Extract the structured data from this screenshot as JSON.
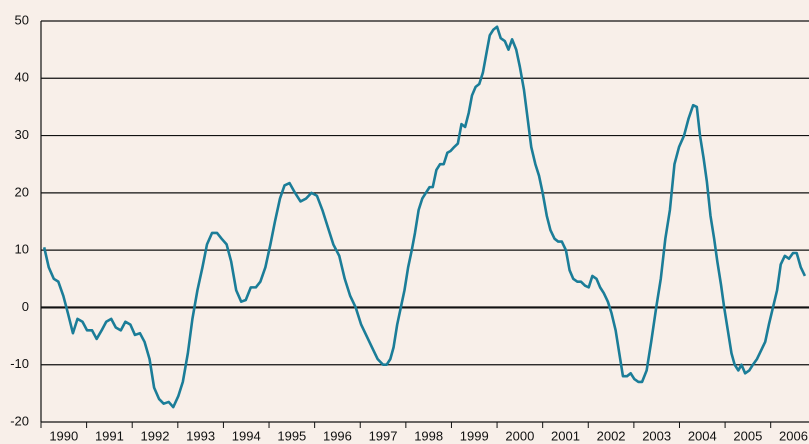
{
  "chart_data": {
    "type": "line",
    "color": "#1b7d98",
    "grid": true,
    "xlim": [
      1990,
      2006.84
    ],
    "xticks": [
      1990,
      1991,
      1992,
      1993,
      1994,
      1995,
      1996,
      1997,
      1998,
      1999,
      2000,
      2001,
      2002,
      2003,
      2004,
      2005,
      2006
    ],
    "ylim": [
      -20,
      50
    ],
    "yticks": [
      -20,
      -10,
      0,
      10,
      20,
      30,
      40,
      50
    ],
    "x": [
      1990.07,
      1990.17,
      1990.28,
      1990.38,
      1990.49,
      1990.59,
      1990.7,
      1990.8,
      1990.91,
      1991.01,
      1991.12,
      1991.22,
      1991.33,
      1991.43,
      1991.54,
      1991.64,
      1991.75,
      1991.85,
      1991.96,
      1992.06,
      1992.17,
      1992.27,
      1992.38,
      1992.48,
      1992.59,
      1992.69,
      1992.8,
      1992.9,
      1993.01,
      1993.11,
      1993.22,
      1993.32,
      1993.43,
      1993.54,
      1993.64,
      1993.75,
      1993.86,
      1993.96,
      1994.07,
      1994.17,
      1994.28,
      1994.39,
      1994.49,
      1994.6,
      1994.71,
      1994.81,
      1994.92,
      1995.03,
      1995.13,
      1995.24,
      1995.34,
      1995.45,
      1995.57,
      1995.69,
      1995.81,
      1995.93,
      1996.05,
      1996.17,
      1996.29,
      1996.41,
      1996.54,
      1996.66,
      1996.78,
      1996.9,
      1997.02,
      1997.14,
      1997.26,
      1997.38,
      1997.5,
      1997.58,
      1997.66,
      1997.73,
      1997.81,
      1997.89,
      1997.97,
      1998.05,
      1998.13,
      1998.2,
      1998.28,
      1998.36,
      1998.44,
      1998.52,
      1998.59,
      1998.67,
      1998.75,
      1998.83,
      1998.91,
      1998.98,
      1999.06,
      1999.14,
      1999.22,
      1999.3,
      1999.38,
      1999.45,
      1999.53,
      1999.61,
      1999.69,
      1999.77,
      1999.84,
      1999.92,
      2000.0,
      2000.08,
      2000.17,
      2000.25,
      2000.33,
      2000.42,
      2000.5,
      2000.59,
      2000.67,
      2000.75,
      2000.84,
      2000.92,
      2001.0,
      2001.09,
      2001.17,
      2001.26,
      2001.34,
      2001.42,
      2001.51,
      2001.59,
      2001.67,
      2001.76,
      2001.84,
      2001.93,
      2002.01,
      2002.09,
      2002.18,
      2002.26,
      2002.34,
      2002.43,
      2002.51,
      2002.6,
      2002.68,
      2002.76,
      2002.85,
      2002.93,
      2003.01,
      2003.1,
      2003.18,
      2003.28,
      2003.38,
      2003.49,
      2003.59,
      2003.69,
      2003.79,
      2003.89,
      2003.99,
      2004.1,
      2004.2,
      2004.3,
      2004.38,
      2004.45,
      2004.53,
      2004.6,
      2004.68,
      2004.76,
      2004.83,
      2004.91,
      2004.98,
      2005.06,
      2005.14,
      2005.21,
      2005.29,
      2005.36,
      2005.44,
      2005.53,
      2005.61,
      2005.7,
      2005.79,
      2005.88,
      2005.96,
      2006.05,
      2006.14,
      2006.22,
      2006.31,
      2006.4,
      2006.49,
      2006.57,
      2006.66,
      2006.75
    ],
    "values": [
      10.5,
      7,
      5,
      4.5,
      2,
      -1,
      -4.5,
      -2,
      -2.5,
      -4,
      -4,
      -5.5,
      -4,
      -2.5,
      -2,
      -3.5,
      -4,
      -2.5,
      -3,
      -4.8,
      -4.5,
      -6,
      -9,
      -14,
      -16,
      -16.8,
      -16.5,
      -17.4,
      -15.5,
      -13,
      -8,
      -2,
      3,
      7,
      11,
      13,
      13,
      12,
      11,
      8,
      3,
      1,
      1.3,
      3.5,
      3.5,
      4.5,
      7,
      11,
      15,
      19,
      21.3,
      21.7,
      20,
      18.5,
      19,
      20,
      19.5,
      17,
      14,
      11,
      9,
      5,
      2,
      0,
      -3,
      -5,
      -7,
      -9,
      -10,
      -10,
      -9,
      -7,
      -3,
      0,
      3,
      7,
      10,
      13,
      17,
      19,
      20,
      21,
      21,
      24,
      25,
      25,
      27,
      27.3,
      28,
      28.6,
      32,
      31.5,
      34,
      37,
      38.5,
      39,
      41,
      44.5,
      47.5,
      48.5,
      49,
      47,
      46.5,
      45,
      46.8,
      45,
      42,
      38,
      33,
      28,
      25,
      23,
      20,
      16,
      13.5,
      12,
      11.5,
      11.5,
      10,
      6.5,
      5,
      4.5,
      4.5,
      3.8,
      3.5,
      5.5,
      5,
      3.5,
      2.5,
      1,
      -1,
      -4,
      -8,
      -12,
      -12,
      -11.5,
      -12.5,
      -13,
      -13,
      -11,
      -6,
      0,
      5,
      12,
      17,
      25,
      28,
      30,
      33,
      35.3,
      35,
      30,
      26,
      22,
      16,
      12,
      8,
      4,
      0,
      -4,
      -8,
      -10,
      -11,
      -10,
      -11.5,
      -11,
      -10,
      -9,
      -7.5,
      -6,
      -3,
      0,
      3,
      7.5,
      9,
      8.5,
      9.5,
      9.5,
      7,
      5.5
    ]
  }
}
